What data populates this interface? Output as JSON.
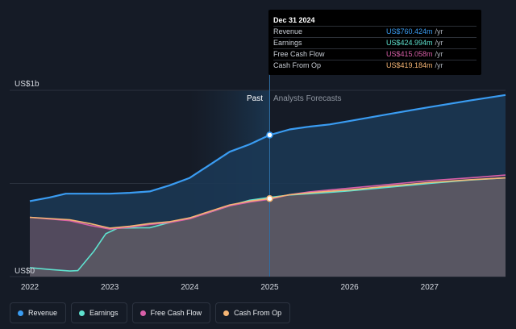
{
  "chart_data": {
    "type": "area",
    "y_axis": {
      "top_label": "US$1b",
      "bottom_label": "US$0",
      "ylim": [
        0,
        1000
      ]
    },
    "x_ticks": [
      "2022",
      "2023",
      "2024",
      "2025",
      "2026",
      "2027"
    ],
    "xlim": [
      2022.0,
      2027.95
    ],
    "divider_x": 2025.0,
    "past_start_x": 2024.0,
    "past_label": "Past",
    "forecast_label": "Analysts Forecasts",
    "series": [
      {
        "name": "Revenue",
        "color": "#3a9cf2",
        "points": [
          [
            2022.0,
            405
          ],
          [
            2022.25,
            425
          ],
          [
            2022.45,
            445
          ],
          [
            2022.75,
            445
          ],
          [
            2023.0,
            445
          ],
          [
            2023.25,
            450
          ],
          [
            2023.5,
            457
          ],
          [
            2023.75,
            490
          ],
          [
            2024.0,
            530
          ],
          [
            2024.25,
            600
          ],
          [
            2024.5,
            670
          ],
          [
            2024.75,
            710
          ],
          [
            2025.0,
            760
          ],
          [
            2025.25,
            790
          ],
          [
            2025.5,
            805
          ],
          [
            2025.75,
            817
          ],
          [
            2026.0,
            835
          ],
          [
            2026.5,
            873
          ],
          [
            2027.0,
            910
          ],
          [
            2027.5,
            945
          ],
          [
            2027.95,
            975
          ]
        ]
      },
      {
        "name": "Earnings",
        "color": "#5fe2cf",
        "points": [
          [
            2022.0,
            48
          ],
          [
            2022.25,
            38
          ],
          [
            2022.5,
            30
          ],
          [
            2022.6,
            32
          ],
          [
            2022.8,
            135
          ],
          [
            2022.95,
            230
          ],
          [
            2023.1,
            260
          ],
          [
            2023.4,
            262
          ],
          [
            2023.5,
            262
          ],
          [
            2023.7,
            285
          ],
          [
            2024.0,
            315
          ],
          [
            2024.25,
            345
          ],
          [
            2024.5,
            380
          ],
          [
            2024.75,
            410
          ],
          [
            2025.0,
            425
          ],
          [
            2025.25,
            438
          ],
          [
            2025.5,
            445
          ],
          [
            2025.75,
            452
          ],
          [
            2026.0,
            460
          ],
          [
            2026.5,
            480
          ],
          [
            2027.0,
            500
          ],
          [
            2027.5,
            518
          ],
          [
            2027.95,
            530
          ]
        ]
      },
      {
        "name": "Free Cash Flow",
        "color": "#d85fa8",
        "points": [
          [
            2022.0,
            318
          ],
          [
            2022.5,
            300
          ],
          [
            2022.75,
            275
          ],
          [
            2023.0,
            255
          ],
          [
            2023.25,
            265
          ],
          [
            2023.5,
            280
          ],
          [
            2023.75,
            290
          ],
          [
            2024.0,
            310
          ],
          [
            2024.25,
            345
          ],
          [
            2024.5,
            380
          ],
          [
            2024.75,
            400
          ],
          [
            2025.0,
            415
          ],
          [
            2025.25,
            440
          ],
          [
            2025.5,
            455
          ],
          [
            2025.75,
            465
          ],
          [
            2026.0,
            475
          ],
          [
            2026.5,
            495
          ],
          [
            2027.0,
            515
          ],
          [
            2027.5,
            530
          ],
          [
            2027.95,
            545
          ]
        ]
      },
      {
        "name": "Cash From Op",
        "color": "#f5b574",
        "points": [
          [
            2022.0,
            318
          ],
          [
            2022.5,
            305
          ],
          [
            2022.75,
            285
          ],
          [
            2023.0,
            260
          ],
          [
            2023.25,
            270
          ],
          [
            2023.5,
            285
          ],
          [
            2023.75,
            295
          ],
          [
            2024.0,
            315
          ],
          [
            2024.25,
            350
          ],
          [
            2024.5,
            385
          ],
          [
            2024.75,
            405
          ],
          [
            2025.0,
            419
          ],
          [
            2025.25,
            440
          ],
          [
            2025.5,
            450
          ],
          [
            2025.75,
            458
          ],
          [
            2026.0,
            466
          ],
          [
            2026.5,
            486
          ],
          [
            2027.0,
            505
          ],
          [
            2027.5,
            520
          ],
          [
            2027.95,
            530
          ]
        ]
      }
    ]
  },
  "tooltip": {
    "date": "Dec 31 2024",
    "rows": [
      {
        "label": "Revenue",
        "value": "US$760.424m",
        "unit": "/yr",
        "color": "#3a9cf2"
      },
      {
        "label": "Earnings",
        "value": "US$424.994m",
        "unit": "/yr",
        "color": "#5fe2cf"
      },
      {
        "label": "Free Cash Flow",
        "value": "US$415.058m",
        "unit": "/yr",
        "color": "#d85fa8"
      },
      {
        "label": "Cash From Op",
        "value": "US$419.184m",
        "unit": "/yr",
        "color": "#f5b574"
      }
    ]
  },
  "legend": [
    {
      "label": "Revenue",
      "color": "#3a9cf2"
    },
    {
      "label": "Earnings",
      "color": "#5fe2cf"
    },
    {
      "label": "Free Cash Flow",
      "color": "#d85fa8"
    },
    {
      "label": "Cash From Op",
      "color": "#f5b574"
    }
  ]
}
